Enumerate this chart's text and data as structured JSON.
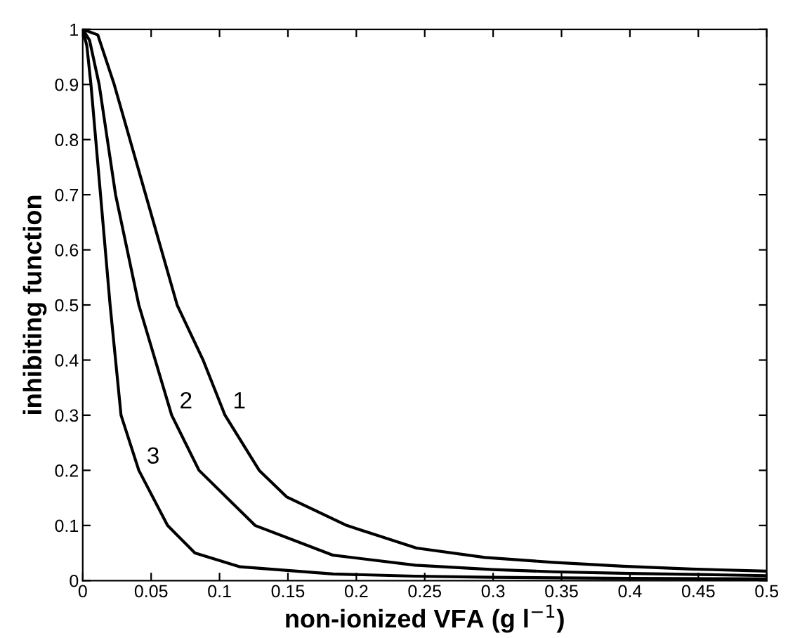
{
  "chart_data": {
    "type": "line",
    "xlabel": "non-ionized VFA (g l$^{−1}$)",
    "ylabel": "inhibiting function",
    "xlim": [
      0,
      0.5
    ],
    "ylim": [
      0,
      1
    ],
    "xticks": [
      0,
      0.05,
      0.1,
      0.15,
      0.2,
      0.25,
      0.3,
      0.35,
      0.4,
      0.45,
      0.5
    ],
    "yticks": [
      0,
      0.1,
      0.2,
      0.3,
      0.4,
      0.5,
      0.6,
      0.7,
      0.8,
      0.9,
      1
    ],
    "grid": false,
    "legend": false,
    "marker": "none",
    "line_style": "solid",
    "series": [
      {
        "name": "1",
        "color": "#000000",
        "x": [
          0,
          0.011,
          0.023,
          0.046,
          0.069,
          0.088,
          0.104,
          0.129,
          0.149,
          0.193,
          0.244,
          0.294,
          0.344,
          0.395,
          0.445,
          0.5
        ],
        "values": [
          1,
          0.99,
          0.9,
          0.7,
          0.5,
          0.4,
          0.3,
          0.2,
          0.152,
          0.1,
          0.059,
          0.042,
          0.033,
          0.026,
          0.021,
          0.017
        ]
      },
      {
        "name": "2",
        "color": "#000000",
        "x": [
          0,
          0.005,
          0.012,
          0.024,
          0.041,
          0.065,
          0.085,
          0.126,
          0.183,
          0.243,
          0.3,
          0.344,
          0.4,
          0.45,
          0.5
        ],
        "values": [
          1,
          0.98,
          0.9,
          0.7,
          0.5,
          0.3,
          0.2,
          0.1,
          0.046,
          0.028,
          0.02,
          0.016,
          0.013,
          0.011,
          0.009
        ]
      },
      {
        "name": "3",
        "color": "#000000",
        "x": [
          0,
          0.003,
          0.006,
          0.013,
          0.02,
          0.028,
          0.041,
          0.062,
          0.082,
          0.115,
          0.183,
          0.243,
          0.3,
          0.4,
          0.5
        ],
        "values": [
          1,
          0.97,
          0.9,
          0.7,
          0.5,
          0.3,
          0.2,
          0.1,
          0.05,
          0.025,
          0.012,
          0.008,
          0.006,
          0.004,
          0.003
        ]
      }
    ]
  }
}
